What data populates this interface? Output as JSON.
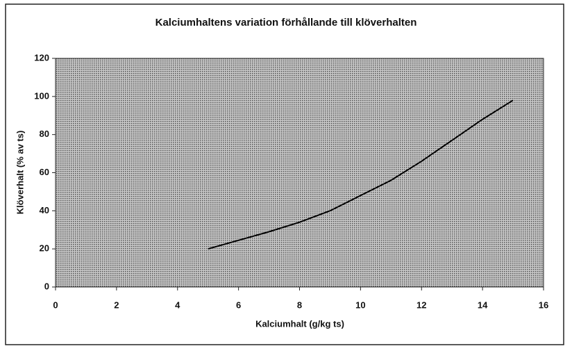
{
  "chart_data": {
    "type": "line",
    "title": "Kalciumhaltens variation förhållande till klöverhalten",
    "x_label": "Kalciumhalt (g/kg ts)",
    "y_label": "Klöverhalt (% av ts)",
    "x": [
      5,
      6,
      7,
      8,
      9,
      10,
      11,
      12,
      13,
      14,
      15
    ],
    "values": [
      20,
      24.5,
      29,
      34,
      40,
      48,
      56,
      66,
      77,
      88,
      98
    ],
    "color": "#000000",
    "xlim": [
      0,
      16
    ],
    "xticks": [
      0,
      2,
      4,
      6,
      8,
      10,
      12,
      14,
      16
    ],
    "ylim": [
      0,
      120
    ],
    "yticks": [
      0,
      20,
      40,
      60,
      80,
      100,
      120
    ],
    "grid": false
  }
}
